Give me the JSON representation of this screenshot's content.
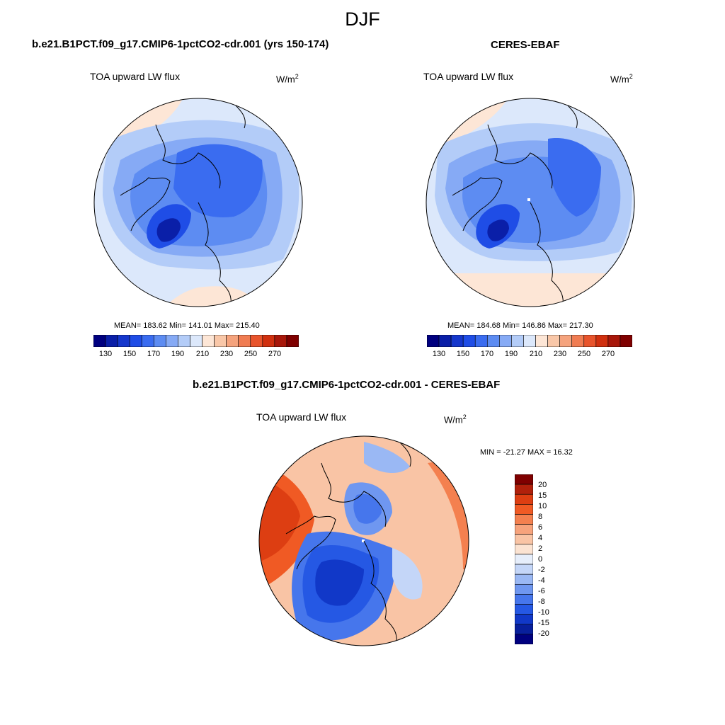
{
  "main_title": "DJF",
  "panels": [
    {
      "title": "b.e21.B1PCT.f09_g17.CMIP6-1pctCO2-cdr.001 (yrs 150-174)",
      "variable": "TOA upward LW flux",
      "units_base": "W/m",
      "units_exp": "2",
      "stats": "MEAN= 183.62  Min= 141.01  Max= 215.40"
    },
    {
      "title": "CERES-EBAF",
      "variable": "TOA upward LW flux",
      "units_base": "W/m",
      "units_exp": "2",
      "stats": "MEAN= 184.68  Min= 146.86  Max= 217.30"
    },
    {
      "title": "b.e21.B1PCT.f09_g17.CMIP6-1pctCO2-cdr.001 - CERES-EBAF",
      "variable": "TOA upward LW flux",
      "units_base": "W/m",
      "units_exp": "2",
      "stats": "MIN = -21.27 MAX =  16.32"
    }
  ],
  "colorbar_abs": {
    "colors": [
      "#00007f",
      "#0a1fa8",
      "#1537cc",
      "#1f4de6",
      "#3a6cf0",
      "#5d8cf2",
      "#86aaf5",
      "#b3ccf8",
      "#dce8fb",
      "#fde6d6",
      "#f9c7a8",
      "#f5a37d",
      "#f07c52",
      "#e8542c",
      "#d0300f",
      "#a8170a",
      "#7f0000"
    ],
    "tick_labels": [
      "130",
      "150",
      "170",
      "190",
      "210",
      "230",
      "250",
      "270"
    ]
  },
  "colorbar_diff": {
    "colors": [
      "#7f0000",
      "#b0200b",
      "#dd3e12",
      "#f05a24",
      "#f4804f",
      "#f7a37c",
      "#f9c4a5",
      "#fbe3d2",
      "#e6eefb",
      "#c4d6f8",
      "#9ab8f4",
      "#6f97f0",
      "#4676ec",
      "#2558e4",
      "#1138c8",
      "#081f9c",
      "#00007f"
    ],
    "tick_labels": [
      "20",
      "15",
      "10",
      "8",
      "6",
      "4",
      "2",
      "0",
      "-2",
      "-4",
      "-6",
      "-8",
      "-10",
      "-15",
      "-20"
    ]
  },
  "chart_data": [
    {
      "type": "heatmap",
      "title": "b.e21.B1PCT.f09_g17.CMIP6-1pctCO2-cdr.001 (yrs 150-174)",
      "subtitle": "TOA upward LW flux",
      "units": "W/m2",
      "projection": "north polar stereographic",
      "mean": 183.62,
      "min": 141.01,
      "max": 215.4,
      "colorbar_levels": [
        130,
        140,
        150,
        160,
        170,
        180,
        190,
        200,
        210,
        220,
        230,
        240,
        250,
        260,
        270
      ]
    },
    {
      "type": "heatmap",
      "title": "CERES-EBAF",
      "subtitle": "TOA upward LW flux",
      "units": "W/m2",
      "projection": "north polar stereographic",
      "mean": 184.68,
      "min": 146.86,
      "max": 217.3,
      "colorbar_levels": [
        130,
        140,
        150,
        160,
        170,
        180,
        190,
        200,
        210,
        220,
        230,
        240,
        250,
        260,
        270
      ]
    },
    {
      "type": "heatmap",
      "title": "b.e21.B1PCT.f09_g17.CMIP6-1pctCO2-cdr.001 - CERES-EBAF",
      "subtitle": "TOA upward LW flux",
      "units": "W/m2",
      "projection": "north polar stereographic",
      "min": -21.27,
      "max": 16.32,
      "colorbar_levels": [
        20,
        15,
        10,
        8,
        6,
        4,
        2,
        0,
        -2,
        -4,
        -6,
        -8,
        -10,
        -15,
        -20
      ]
    }
  ]
}
